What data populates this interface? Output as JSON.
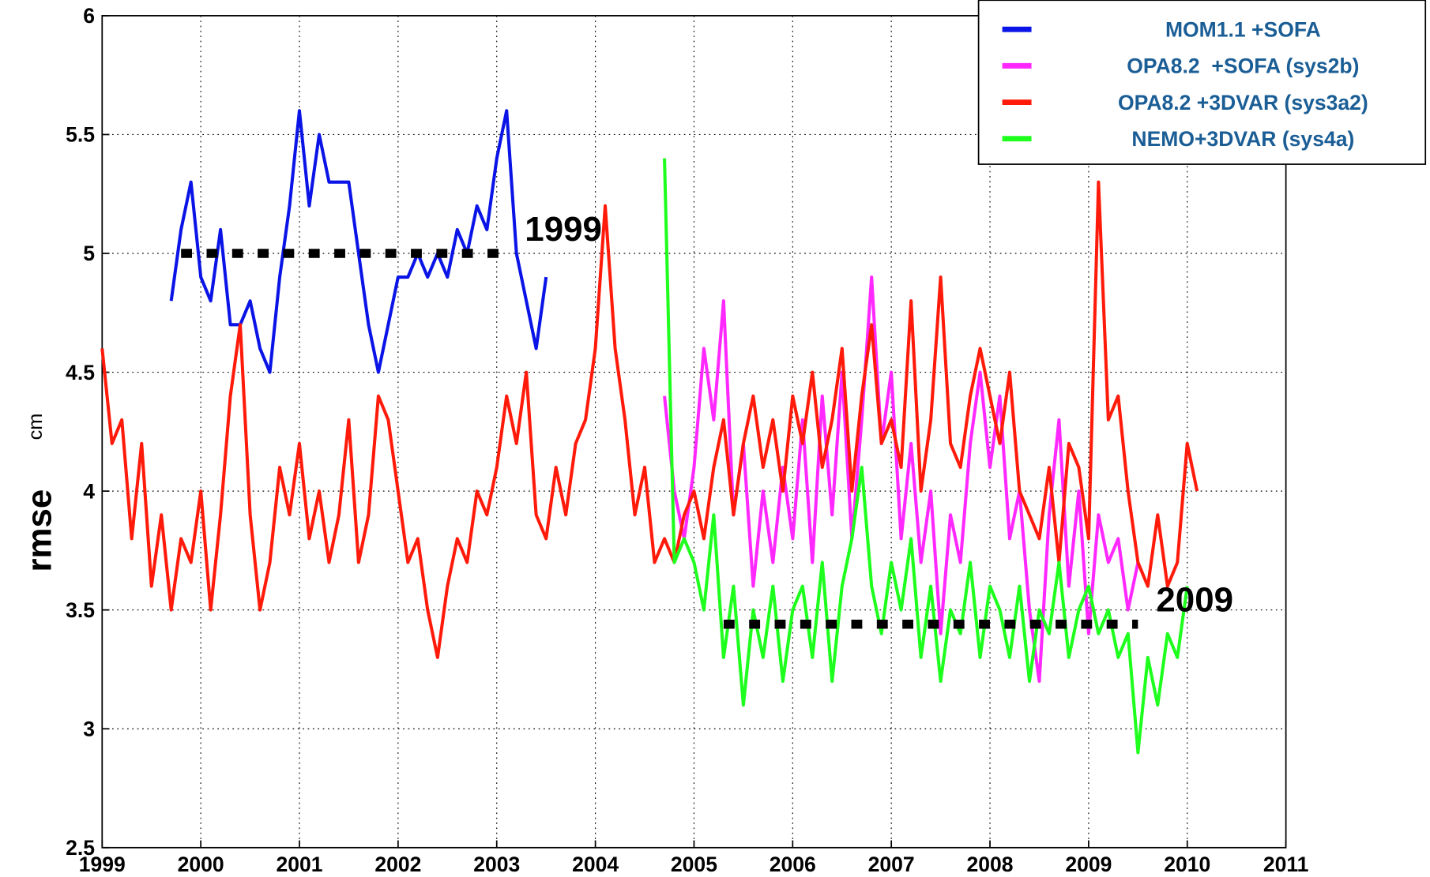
{
  "chart_data": {
    "type": "line",
    "ylabel": "rmse",
    "ylabel_unit": "cm",
    "xlim": [
      1999,
      2011
    ],
    "xticks": [
      1999,
      2000,
      2001,
      2002,
      2003,
      2004,
      2005,
      2006,
      2007,
      2008,
      2009,
      2010,
      2011
    ],
    "ylim": [
      2.5,
      6
    ],
    "yticks": [
      2.5,
      3,
      3.5,
      4,
      4.5,
      5,
      5.5,
      6
    ],
    "grid": true,
    "legend": "upper right",
    "series": [
      {
        "name": "MOM1.1 +SOFA",
        "color": "#0a14e6",
        "x": [
          1999.7,
          1999.8,
          1999.9,
          2000.0,
          2000.1,
          2000.2,
          2000.3,
          2000.4,
          2000.5,
          2000.6,
          2000.7,
          2000.8,
          2000.9,
          2001.0,
          2001.1,
          2001.2,
          2001.3,
          2001.4,
          2001.5,
          2001.6,
          2001.7,
          2001.8,
          2001.9,
          2002.0,
          2002.1,
          2002.2,
          2002.3,
          2002.4,
          2002.5,
          2002.6,
          2002.7,
          2002.8,
          2002.9,
          2003.0,
          2003.1,
          2003.2,
          2003.3,
          2003.4,
          2003.5
        ],
        "values": [
          4.8,
          5.1,
          5.3,
          4.9,
          4.8,
          5.1,
          4.7,
          4.7,
          4.8,
          4.6,
          4.5,
          4.9,
          5.2,
          5.6,
          5.2,
          5.5,
          5.3,
          5.3,
          5.3,
          5.0,
          4.7,
          4.5,
          4.7,
          4.9,
          4.9,
          5.0,
          4.9,
          5.0,
          4.9,
          5.1,
          5.0,
          5.2,
          5.1,
          5.4,
          5.6,
          5.0,
          4.8,
          4.6,
          4.9
        ]
      },
      {
        "name": "OPA8.2  +SOFA (sys2b)",
        "color": "#ff28ff",
        "x": [
          2004.7,
          2004.8,
          2004.9,
          2005.0,
          2005.1,
          2005.2,
          2005.3,
          2005.4,
          2005.5,
          2005.6,
          2005.7,
          2005.8,
          2005.9,
          2006.0,
          2006.1,
          2006.2,
          2006.3,
          2006.4,
          2006.5,
          2006.6,
          2006.7,
          2006.8,
          2006.9,
          2007.0,
          2007.1,
          2007.2,
          2007.3,
          2007.4,
          2007.5,
          2007.6,
          2007.7,
          2007.8,
          2007.9,
          2008.0,
          2008.1,
          2008.2,
          2008.3,
          2008.4,
          2008.5,
          2008.6,
          2008.7,
          2008.8,
          2008.9,
          2009.0,
          2009.1,
          2009.2,
          2009.3,
          2009.4,
          2009.5
        ],
        "values": [
          4.4,
          4.0,
          3.8,
          4.1,
          4.6,
          4.3,
          4.8,
          3.9,
          4.2,
          3.6,
          4.0,
          3.7,
          4.1,
          3.8,
          4.3,
          3.7,
          4.4,
          3.9,
          4.5,
          3.8,
          4.3,
          4.9,
          4.2,
          4.5,
          3.8,
          4.2,
          3.7,
          4.0,
          3.4,
          3.9,
          3.7,
          4.2,
          4.5,
          4.1,
          4.4,
          3.8,
          4.0,
          3.5,
          3.2,
          3.9,
          4.3,
          3.6,
          4.0,
          3.4,
          3.9,
          3.7,
          3.8,
          3.5,
          3.7
        ]
      },
      {
        "name": "OPA8.2 +3DVAR (sys3a2)",
        "color": "#ff1a0a",
        "x": [
          1999.0,
          1999.1,
          1999.2,
          1999.3,
          1999.4,
          1999.5,
          1999.6,
          1999.7,
          1999.8,
          1999.9,
          2000.0,
          2000.1,
          2000.2,
          2000.3,
          2000.4,
          2000.5,
          2000.6,
          2000.7,
          2000.8,
          2000.9,
          2001.0,
          2001.1,
          2001.2,
          2001.3,
          2001.4,
          2001.5,
          2001.6,
          2001.7,
          2001.8,
          2001.9,
          2002.0,
          2002.1,
          2002.2,
          2002.3,
          2002.4,
          2002.5,
          2002.6,
          2002.7,
          2002.8,
          2002.9,
          2003.0,
          2003.1,
          2003.2,
          2003.3,
          2003.4,
          2003.5,
          2003.6,
          2003.7,
          2003.8,
          2003.9,
          2004.0,
          2004.1,
          2004.2,
          2004.3,
          2004.4,
          2004.5,
          2004.6,
          2004.7,
          2004.8,
          2004.9,
          2005.0,
          2005.1,
          2005.2,
          2005.3,
          2005.4,
          2005.5,
          2005.6,
          2005.7,
          2005.8,
          2005.9,
          2006.0,
          2006.1,
          2006.2,
          2006.3,
          2006.4,
          2006.5,
          2006.6,
          2006.7,
          2006.8,
          2006.9,
          2007.0,
          2007.1,
          2007.2,
          2007.3,
          2007.4,
          2007.5,
          2007.6,
          2007.7,
          2007.8,
          2007.9,
          2008.0,
          2008.1,
          2008.2,
          2008.3,
          2008.4,
          2008.5,
          2008.6,
          2008.7,
          2008.8,
          2008.9,
          2009.0,
          2009.1,
          2009.2,
          2009.3,
          2009.4,
          2009.5,
          2009.6,
          2009.7,
          2009.8,
          2009.9,
          2010.0,
          2010.1
        ],
        "values": [
          4.6,
          4.2,
          4.3,
          3.8,
          4.2,
          3.6,
          3.9,
          3.5,
          3.8,
          3.7,
          4.0,
          3.5,
          3.9,
          4.4,
          4.7,
          3.9,
          3.5,
          3.7,
          4.1,
          3.9,
          4.2,
          3.8,
          4.0,
          3.7,
          3.9,
          4.3,
          3.7,
          3.9,
          4.4,
          4.3,
          4.0,
          3.7,
          3.8,
          3.5,
          3.3,
          3.6,
          3.8,
          3.7,
          4.0,
          3.9,
          4.1,
          4.4,
          4.2,
          4.5,
          3.9,
          3.8,
          4.1,
          3.9,
          4.2,
          4.3,
          4.6,
          5.2,
          4.6,
          4.3,
          3.9,
          4.1,
          3.7,
          3.8,
          3.7,
          3.9,
          4.0,
          3.8,
          4.1,
          4.3,
          3.9,
          4.2,
          4.4,
          4.1,
          4.3,
          4.0,
          4.4,
          4.2,
          4.5,
          4.1,
          4.3,
          4.6,
          4.0,
          4.4,
          4.7,
          4.2,
          4.3,
          4.1,
          4.8,
          4.0,
          4.3,
          4.9,
          4.2,
          4.1,
          4.4,
          4.6,
          4.4,
          4.2,
          4.5,
          4.0,
          3.9,
          3.8,
          4.1,
          3.7,
          4.2,
          4.1,
          3.8,
          5.3,
          4.3,
          4.4,
          4.0,
          3.7,
          3.6,
          3.9,
          3.6,
          3.7,
          4.2,
          4.0
        ]
      },
      {
        "name": "NEMO+3DVAR (sys4a)",
        "color": "#1eff1e",
        "x": [
          2004.7,
          2004.8,
          2004.9,
          2005.0,
          2005.1,
          2005.2,
          2005.3,
          2005.4,
          2005.5,
          2005.6,
          2005.7,
          2005.8,
          2005.9,
          2006.0,
          2006.1,
          2006.2,
          2006.3,
          2006.4,
          2006.5,
          2006.6,
          2006.7,
          2006.8,
          2006.9,
          2007.0,
          2007.1,
          2007.2,
          2007.3,
          2007.4,
          2007.5,
          2007.6,
          2007.7,
          2007.8,
          2007.9,
          2008.0,
          2008.1,
          2008.2,
          2008.3,
          2008.4,
          2008.5,
          2008.6,
          2008.7,
          2008.8,
          2008.9,
          2009.0,
          2009.1,
          2009.2,
          2009.3,
          2009.4,
          2009.5,
          2009.6,
          2009.7,
          2009.8,
          2009.9,
          2010.0
        ],
        "values": [
          5.4,
          3.7,
          3.8,
          3.7,
          3.5,
          3.9,
          3.3,
          3.6,
          3.1,
          3.5,
          3.3,
          3.6,
          3.2,
          3.5,
          3.6,
          3.3,
          3.7,
          3.2,
          3.6,
          3.8,
          4.1,
          3.6,
          3.4,
          3.7,
          3.5,
          3.8,
          3.3,
          3.6,
          3.2,
          3.5,
          3.4,
          3.7,
          3.3,
          3.6,
          3.5,
          3.3,
          3.6,
          3.2,
          3.5,
          3.4,
          3.7,
          3.3,
          3.5,
          3.6,
          3.4,
          3.5,
          3.3,
          3.4,
          2.9,
          3.3,
          3.1,
          3.4,
          3.3,
          3.6
        ]
      }
    ],
    "annotations": [
      {
        "label": "1999",
        "y": 5,
        "x": [
          1999.8,
          2003.1
        ]
      },
      {
        "label": "2009",
        "y": 3.44,
        "x": [
          2005.3,
          2009.5
        ]
      }
    ]
  }
}
